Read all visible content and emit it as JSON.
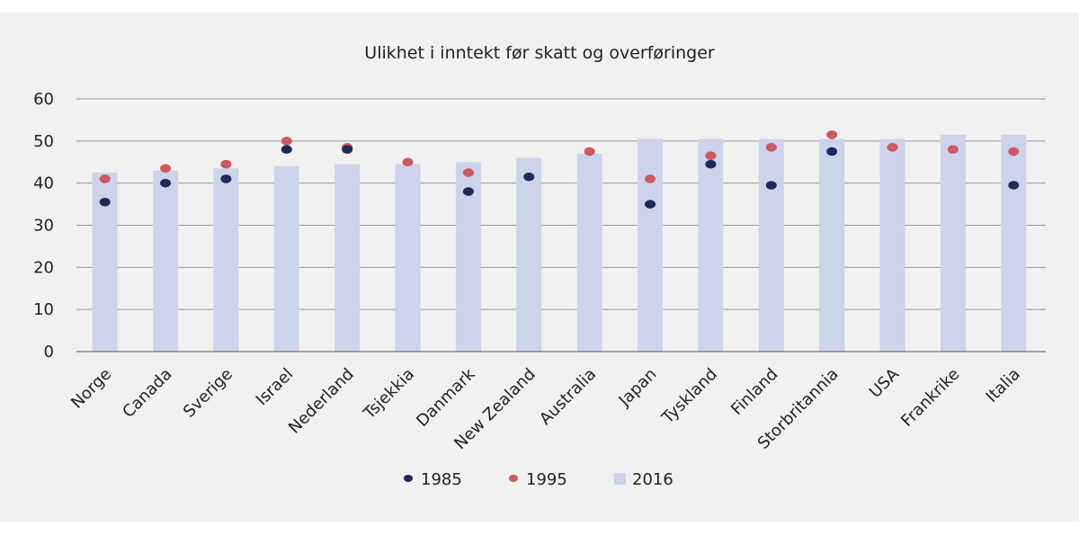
{
  "chart_data": {
    "type": "bar",
    "title": "Ulikhet i inntekt før skatt og overføringer",
    "xlabel": "",
    "ylabel": "",
    "ylim": [
      0,
      60
    ],
    "yticks": [
      0,
      10,
      20,
      30,
      40,
      50,
      60
    ],
    "grid": true,
    "legend_position": "bottom",
    "categories": [
      "Norge",
      "Canada",
      "Sverige",
      "Israel",
      "Nederland",
      "Tsjekkia",
      "Danmark",
      "New Zealand",
      "Australia",
      "Japan",
      "Tyskland",
      "Finland",
      "Storbritannia",
      "USA",
      "Frankrike",
      "Italia"
    ],
    "series": [
      {
        "name": "1985",
        "kind": "dot",
        "color": "#1f2a5a",
        "values": [
          35.5,
          40,
          41,
          48,
          48,
          null,
          38,
          41.5,
          null,
          35,
          44.5,
          39.5,
          47.5,
          null,
          null,
          39.5
        ]
      },
      {
        "name": "1995",
        "kind": "dot",
        "color": "#cc5a60",
        "values": [
          41,
          43.5,
          44.5,
          50,
          48.5,
          45,
          42.5,
          null,
          47.5,
          41,
          46.5,
          48.5,
          51.5,
          48.5,
          48,
          47.5
        ]
      },
      {
        "name": "2016",
        "kind": "bar",
        "color": "#cdd3ea",
        "values": [
          42.5,
          43,
          43.5,
          44,
          44.5,
          44.5,
          45,
          46,
          47,
          50.5,
          50.5,
          50.5,
          50.5,
          50.5,
          51.5,
          51.5
        ]
      }
    ]
  }
}
